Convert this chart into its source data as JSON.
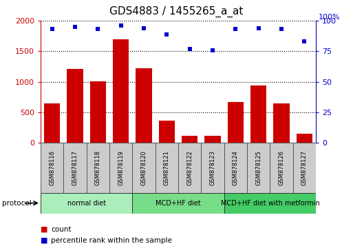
{
  "title": "GDS4883 / 1455265_a_at",
  "samples": [
    "GSM878116",
    "GSM878117",
    "GSM878118",
    "GSM878119",
    "GSM878120",
    "GSM878121",
    "GSM878122",
    "GSM878123",
    "GSM878124",
    "GSM878125",
    "GSM878126",
    "GSM878127"
  ],
  "counts": [
    650,
    1210,
    1010,
    1700,
    1220,
    360,
    110,
    110,
    670,
    940,
    650,
    150
  ],
  "percentile": [
    93,
    95,
    93,
    96,
    94,
    89,
    77,
    76,
    93,
    94,
    93,
    83
  ],
  "bar_color": "#cc0000",
  "dot_color": "#0000cc",
  "ylim_left": [
    0,
    2000
  ],
  "ylim_right": [
    0,
    100
  ],
  "yticks_left": [
    0,
    500,
    1000,
    1500,
    2000
  ],
  "yticks_right": [
    0,
    25,
    50,
    75,
    100
  ],
  "groups": [
    {
      "label": "normal diet",
      "start": 0,
      "end": 4,
      "color": "#aaeebb"
    },
    {
      "label": "MCD+HF diet",
      "start": 4,
      "end": 8,
      "color": "#77dd88"
    },
    {
      "label": "MCD+HF diet with metformin",
      "start": 8,
      "end": 12,
      "color": "#44cc66"
    }
  ],
  "protocol_label": "protocol",
  "legend_count_label": "count",
  "legend_pct_label": "percentile rank within the sample",
  "bg_color": "#ffffff",
  "tick_color_left": "#cc0000",
  "tick_color_right": "#0000cc",
  "sample_bg_color": "#cccccc",
  "title_fontsize": 11,
  "tick_fontsize": 8,
  "label_fontsize": 7
}
